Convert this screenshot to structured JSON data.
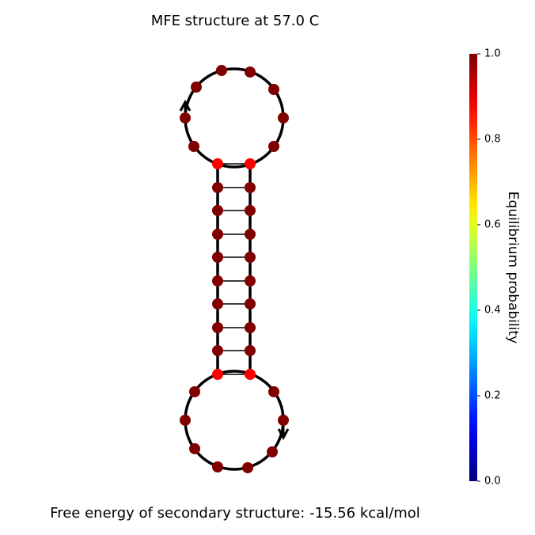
{
  "title": "MFE structure at 57.0 C",
  "footer": "Free energy of secondary structure: -15.56 kcal/mol",
  "colorbar": {
    "label": "Equilibrium probability",
    "lim": [
      0,
      1
    ],
    "ticks": [
      {
        "value": 0,
        "label": "0.0"
      },
      {
        "value": 0.2,
        "label": "0.2"
      },
      {
        "value": 0.4,
        "label": "0.4"
      },
      {
        "value": 0.6,
        "label": "0.6"
      },
      {
        "value": 0.8,
        "label": "0.8"
      },
      {
        "value": 1,
        "label": "1.0"
      }
    ]
  },
  "probabilities": [
    1,
    1,
    1,
    1,
    1,
    1,
    1,
    0.88,
    1,
    1,
    1,
    1,
    1,
    1,
    1,
    1,
    0.88,
    1,
    1,
    1,
    1,
    1,
    1,
    1,
    1,
    0.88,
    1,
    1,
    1,
    1,
    1,
    1,
    1,
    1,
    0.88,
    1
  ]
}
